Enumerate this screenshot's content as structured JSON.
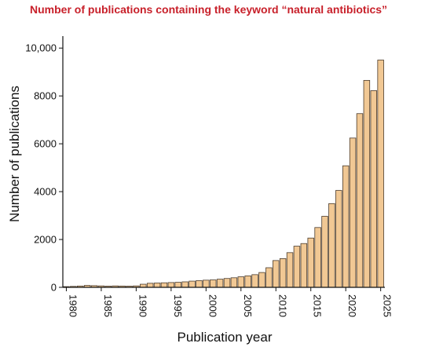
{
  "chart_data": {
    "type": "bar",
    "title": "Number of publications containing the keyword “natural antibiotics”",
    "xlabel": "Publication year",
    "ylabel": "Number of publications",
    "ylim": [
      0,
      10500
    ],
    "xlim": [
      1979.5,
      2025.6
    ],
    "yticks": [
      0,
      2000,
      4000,
      6000,
      8000,
      10000
    ],
    "ytick_labels": [
      "0",
      "2000",
      "4000",
      "6000",
      "8000",
      "10,000"
    ],
    "xticks": [
      1980,
      1985,
      1990,
      1995,
      2000,
      2005,
      2010,
      2015,
      2020,
      2025
    ],
    "xtick_labels": [
      "1980",
      "1985",
      "1990",
      "1995",
      "2000",
      "2005",
      "2010",
      "2015",
      "2020",
      "2025"
    ],
    "grid": false,
    "legend": "none",
    "colors": {
      "bar_fill": "#f1c894",
      "bar_edge": "#4a3a2a",
      "title": "#c8202a"
    },
    "x": [
      1980,
      1981,
      1982,
      1983,
      1984,
      1985,
      1986,
      1987,
      1988,
      1989,
      1990,
      1991,
      1992,
      1993,
      1994,
      1995,
      1996,
      1997,
      1998,
      1999,
      2000,
      2001,
      2002,
      2003,
      2004,
      2005,
      2006,
      2007,
      2008,
      2009,
      2010,
      2011,
      2012,
      2013,
      2014,
      2015,
      2016,
      2017,
      2018,
      2019,
      2020,
      2021,
      2022,
      2023,
      2024,
      2025
    ],
    "values": [
      30,
      40,
      55,
      80,
      70,
      60,
      50,
      60,
      55,
      50,
      60,
      130,
      170,
      180,
      190,
      200,
      210,
      230,
      260,
      280,
      300,
      310,
      340,
      370,
      400,
      440,
      480,
      530,
      620,
      820,
      1120,
      1200,
      1450,
      1720,
      1830,
      2060,
      2500,
      2970,
      3500,
      4050,
      5080,
      6240,
      7260,
      8650,
      8220,
      9500
    ]
  }
}
